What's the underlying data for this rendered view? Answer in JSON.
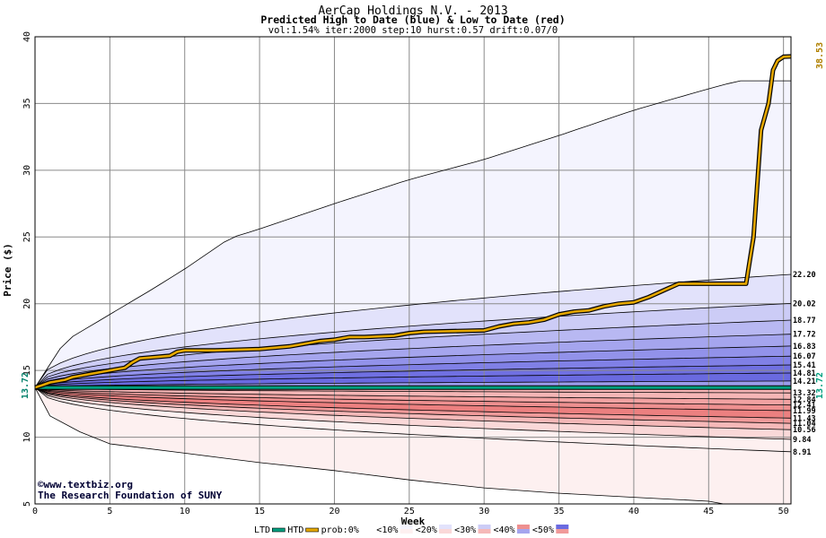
{
  "chart_data": {
    "type": "area",
    "title": "AerCap Holdings N.V. - 2013",
    "subtitle": "Predicted High to Date (blue) &  Low to Date (red)",
    "params": "vol:1.54% iter:2000 step:10 hurst:0.57 drift:0.07/0",
    "xlabel": "Week",
    "ylabel": "Price ($)",
    "xlim": [
      0,
      50.5
    ],
    "ylim": [
      5,
      40
    ],
    "x_ticks": [
      "0",
      "5",
      "10",
      "15",
      "20",
      "25",
      "30",
      "35",
      "40",
      "45",
      "50"
    ],
    "y_ticks": [
      "5",
      "10",
      "15",
      "20",
      "25",
      "30",
      "35",
      "40"
    ],
    "grid": true,
    "start_price": 13.72,
    "start_label": "13.72",
    "last_ltd_label": "13.72",
    "last_htd_label": "38.53",
    "high_band_labels": [
      "22.20",
      "20.02",
      "18.77",
      "17.72",
      "16.83",
      "16.07",
      "15.41",
      "14.81",
      "14.21",
      "13.32"
    ],
    "high_band_values": [
      22.2,
      20.02,
      18.77,
      17.72,
      16.83,
      16.07,
      15.41,
      14.81,
      14.21,
      13.32
    ],
    "low_band_labels": [
      "12.84",
      "12.41",
      "11.99",
      "11.43",
      "11.04",
      "10.56",
      "9.84",
      "8.91"
    ],
    "low_band_values": [
      12.84,
      12.41,
      11.99,
      11.43,
      11.04,
      10.56,
      9.84,
      8.91
    ],
    "max_curve": {
      "x": [
        0,
        2,
        5,
        8,
        10,
        13,
        15,
        20,
        25,
        30,
        35,
        40,
        45,
        47,
        50.5
      ],
      "y": [
        13.72,
        17.2,
        19.2,
        21.2,
        22.6,
        24.9,
        25.6,
        27.5,
        29.3,
        30.8,
        32.6,
        34.5,
        36.1,
        36.7,
        36.7
      ]
    },
    "min_curve": {
      "x": [
        0,
        1,
        3,
        5,
        10,
        15,
        20,
        25,
        30,
        35,
        40,
        45,
        46
      ],
      "y": [
        13.72,
        11.6,
        10.4,
        9.5,
        8.8,
        8.1,
        7.5,
        6.8,
        6.2,
        5.8,
        5.5,
        5.2,
        5.0
      ]
    },
    "htd_series": {
      "name": "HTD",
      "x": [
        0,
        0.5,
        1,
        2,
        2.5,
        3,
        4,
        5,
        6,
        6.5,
        7,
        8,
        9,
        9.5,
        10,
        12,
        15,
        17,
        18,
        19,
        20,
        21,
        22,
        24,
        25,
        26,
        30,
        31,
        32,
        33,
        34,
        35,
        36,
        37,
        38,
        39,
        40,
        41,
        42,
        43,
        44,
        45,
        46,
        47,
        47.5,
        48,
        48.5,
        49,
        49.3,
        49.6,
        50,
        50.5
      ],
      "y": [
        13.72,
        13.9,
        14.1,
        14.3,
        14.5,
        14.6,
        14.8,
        15.0,
        15.2,
        15.6,
        15.9,
        16.0,
        16.1,
        16.4,
        16.5,
        16.5,
        16.6,
        16.8,
        17.0,
        17.2,
        17.3,
        17.5,
        17.5,
        17.6,
        17.8,
        17.9,
        18.0,
        18.3,
        18.5,
        18.6,
        18.8,
        19.2,
        19.4,
        19.5,
        19.8,
        20.0,
        20.1,
        20.5,
        21.0,
        21.5,
        21.5,
        21.5,
        21.5,
        21.5,
        21.5,
        25.0,
        33.0,
        35.0,
        37.5,
        38.2,
        38.5,
        38.53
      ]
    },
    "ltd_series": {
      "name": "LTD",
      "x": [
        0,
        50.5
      ],
      "y": [
        13.72,
        13.72
      ]
    },
    "legend": {
      "position": "bottom",
      "items": [
        "LTD",
        "HTD",
        "prob:0%",
        "<10%",
        "<20%",
        "<30%",
        "<40%",
        "<50%"
      ]
    },
    "colors": {
      "htd": "#e6a800",
      "ltd": "#00a080",
      "high_bands": [
        "#f4f4fe",
        "#e2e2fb",
        "#ccccf6",
        "#b8b8f2",
        "#a5a5ee",
        "#9292ea",
        "#8080e6",
        "#7070e2",
        "#6a6ae0",
        "#9c9cec"
      ],
      "low_bands": [
        "#f6b6b6",
        "#f2a2a2",
        "#ee9090",
        "#ec8080",
        "#f09a9a",
        "#f5b8b8",
        "#fad8d8",
        "#fdf0f0"
      ]
    }
  },
  "credits": {
    "line1": "©www.textbiz.org",
    "line2": "The Research Foundation of SUNY"
  }
}
